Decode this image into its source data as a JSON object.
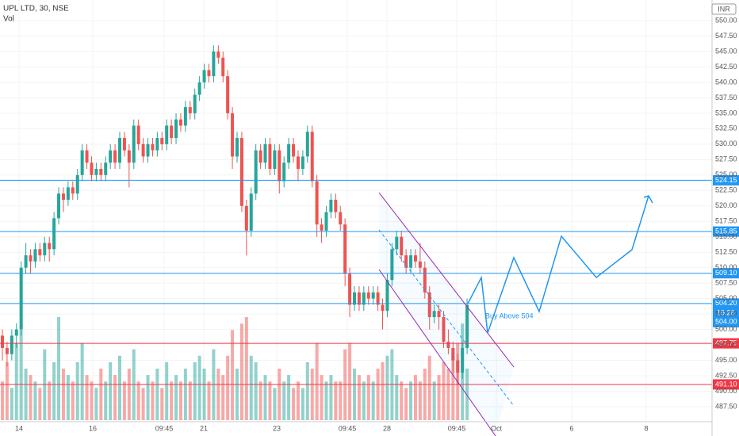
{
  "chart_data": {
    "type": "candlestick",
    "title": "UPL LTD, 30, NSE",
    "volume_label": "Vol",
    "currency": "INR",
    "up_color": "#26a69a",
    "down_color": "#ef5350",
    "ylim": [
      487.5,
      550
    ],
    "yticks": [
      {
        "value": 487.5,
        "label": "487.50"
      },
      {
        "value": 490,
        "label": "490.00"
      },
      {
        "value": 492.5,
        "label": "492.50"
      },
      {
        "value": 495,
        "label": "495.00"
      },
      {
        "value": 497.5,
        "label": "497.50"
      },
      {
        "value": 500,
        "label": "500.00"
      },
      {
        "value": 502.5,
        "label": "502.50"
      },
      {
        "value": 505,
        "label": "505.00"
      },
      {
        "value": 507.5,
        "label": "507.50"
      },
      {
        "value": 510,
        "label": "510.00"
      },
      {
        "value": 512.5,
        "label": "512.50"
      },
      {
        "value": 515,
        "label": "515.00"
      },
      {
        "value": 517.5,
        "label": "517.50"
      },
      {
        "value": 520,
        "label": "520.00"
      },
      {
        "value": 522.5,
        "label": "522.50"
      },
      {
        "value": 525,
        "label": "525.00"
      },
      {
        "value": 527.5,
        "label": "527.50"
      },
      {
        "value": 530,
        "label": "530.00"
      },
      {
        "value": 532.5,
        "label": "532.50"
      },
      {
        "value": 535,
        "label": "535.00"
      },
      {
        "value": 537.5,
        "label": "537.50"
      },
      {
        "value": 540,
        "label": "540.00"
      },
      {
        "value": 542.5,
        "label": "542.50"
      },
      {
        "value": 545,
        "label": "545.00"
      },
      {
        "value": 547.5,
        "label": "547.50"
      },
      {
        "value": 550,
        "label": "550.00"
      }
    ],
    "xtick_labels": [
      "14",
      "16",
      "09:45",
      "21",
      "23",
      "09:45",
      "28",
      "09:45",
      "Oct",
      "6",
      "8"
    ],
    "ohlc": [
      [
        499,
        500,
        495,
        497
      ],
      [
        497,
        498,
        494,
        496
      ],
      [
        496,
        500,
        495,
        499
      ],
      [
        499,
        501,
        497,
        500
      ],
      [
        500,
        511,
        499,
        510
      ],
      [
        510,
        514,
        509,
        512
      ],
      [
        512,
        513,
        509,
        511
      ],
      [
        511,
        514,
        510,
        513
      ],
      [
        513,
        514,
        511,
        512
      ],
      [
        512,
        515,
        511,
        514
      ],
      [
        514,
        515,
        511,
        513
      ],
      [
        513,
        519,
        512,
        518
      ],
      [
        518,
        523,
        517,
        522
      ],
      [
        522,
        523,
        519,
        521
      ],
      [
        521,
        524,
        520,
        523
      ],
      [
        523,
        524,
        521,
        522
      ],
      [
        522,
        526,
        521,
        525
      ],
      [
        525,
        530,
        524,
        529
      ],
      [
        529,
        530,
        526,
        527
      ],
      [
        527,
        528,
        524,
        525
      ],
      [
        525,
        527,
        524,
        526
      ],
      [
        526,
        527,
        524,
        525
      ],
      [
        525,
        528,
        524,
        527
      ],
      [
        527,
        530,
        526,
        529
      ],
      [
        529,
        530,
        526,
        527
      ],
      [
        527,
        532,
        526,
        531
      ],
      [
        531,
        532,
        528,
        529
      ],
      [
        529,
        530,
        523,
        527
      ],
      [
        527,
        534,
        526,
        533
      ],
      [
        533,
        534,
        529,
        530
      ],
      [
        530,
        531,
        527,
        528
      ],
      [
        528,
        531,
        527,
        530
      ],
      [
        530,
        531,
        528,
        529
      ],
      [
        529,
        532,
        528,
        531
      ],
      [
        531,
        532,
        529,
        530
      ],
      [
        530,
        534,
        529,
        533
      ],
      [
        533,
        534,
        530,
        531
      ],
      [
        531,
        535,
        530,
        534
      ],
      [
        534,
        535,
        532,
        533
      ],
      [
        533,
        537,
        532,
        536
      ],
      [
        536,
        537,
        534,
        535
      ],
      [
        535,
        539,
        534,
        538
      ],
      [
        538,
        541,
        537,
        540
      ],
      [
        540,
        543,
        539,
        542
      ],
      [
        542,
        543,
        540,
        541
      ],
      [
        541,
        546,
        540,
        545
      ],
      [
        545,
        546,
        543,
        544
      ],
      [
        544,
        545,
        540,
        541
      ],
      [
        541,
        542,
        534,
        535
      ],
      [
        535,
        536,
        526,
        528
      ],
      [
        528,
        532,
        527,
        531
      ],
      [
        531,
        532,
        519,
        520
      ],
      [
        520,
        521,
        512,
        516
      ],
      [
        516,
        523,
        515,
        522
      ],
      [
        522,
        530,
        521,
        529
      ],
      [
        529,
        530,
        526,
        527
      ],
      [
        527,
        531,
        526,
        530
      ],
      [
        530,
        531,
        525,
        526
      ],
      [
        526,
        530,
        525,
        529
      ],
      [
        529,
        530,
        522,
        524
      ],
      [
        524,
        528,
        523,
        527
      ],
      [
        527,
        531,
        526,
        530
      ],
      [
        530,
        531,
        527,
        528
      ],
      [
        528,
        529,
        524,
        526
      ],
      [
        526,
        529,
        525,
        528
      ],
      [
        528,
        533,
        527,
        532
      ],
      [
        532,
        533,
        523,
        524
      ],
      [
        524,
        525,
        515,
        517
      ],
      [
        517,
        518,
        514,
        516
      ],
      [
        516,
        520,
        515,
        519
      ],
      [
        519,
        522,
        518,
        521
      ],
      [
        521,
        522,
        518,
        519
      ],
      [
        519,
        520,
        516,
        517
      ],
      [
        517,
        518,
        507,
        509
      ],
      [
        509,
        510,
        502,
        504
      ],
      [
        504,
        507,
        503,
        506
      ],
      [
        506,
        507,
        503,
        504
      ],
      [
        504,
        507,
        503,
        506
      ],
      [
        506,
        507,
        504,
        505
      ],
      [
        505,
        507,
        504,
        506
      ],
      [
        506,
        507,
        503,
        504
      ],
      [
        504,
        505,
        500,
        503
      ],
      [
        503,
        509,
        502,
        508
      ],
      [
        508,
        514,
        507,
        513
      ],
      [
        513,
        516,
        512,
        515
      ],
      [
        515,
        516,
        511,
        512
      ],
      [
        512,
        513,
        509,
        510
      ],
      [
        510,
        513,
        509,
        512
      ],
      [
        512,
        513,
        510,
        511
      ],
      [
        511,
        514,
        509,
        510
      ],
      [
        510,
        511,
        505,
        506
      ],
      [
        506,
        507,
        500,
        502
      ],
      [
        502,
        504,
        501,
        503
      ],
      [
        503,
        504,
        500,
        502
      ],
      [
        502,
        503,
        497,
        498
      ],
      [
        498,
        500,
        496,
        497
      ],
      [
        497,
        498,
        493,
        495
      ],
      [
        495,
        496,
        491,
        493
      ],
      [
        493,
        498,
        492,
        497
      ],
      [
        497,
        505,
        496,
        504
      ]
    ],
    "volume": [
      30,
      45,
      25,
      60,
      70,
      40,
      35,
      30,
      25,
      55,
      30,
      45,
      80,
      40,
      35,
      30,
      45,
      60,
      35,
      30,
      25,
      40,
      30,
      45,
      35,
      50,
      30,
      40,
      55,
      30,
      25,
      35,
      30,
      40,
      25,
      45,
      30,
      35,
      30,
      40,
      30,
      45,
      50,
      40,
      30,
      55,
      40,
      35,
      50,
      70,
      40,
      75,
      80,
      50,
      45,
      30,
      35,
      30,
      25,
      40,
      30,
      35,
      25,
      30,
      25,
      45,
      40,
      60,
      35,
      30,
      35,
      30,
      30,
      55,
      60,
      40,
      35,
      30,
      35,
      30,
      40,
      45,
      50,
      55,
      35,
      30,
      25,
      30,
      35,
      30,
      40,
      50,
      30,
      35,
      45,
      40,
      50,
      60,
      75,
      40
    ],
    "levels": [
      {
        "value": 524.15,
        "label": "524.15",
        "color": "#2196f3"
      },
      {
        "value": 515.85,
        "label": "515.85",
        "color": "#2196f3"
      },
      {
        "value": 509.1,
        "label": "509.10",
        "color": "#2196f3"
      },
      {
        "value": 504.2,
        "label": "504.20",
        "color": "#2196f3"
      },
      {
        "value": 497.75,
        "label": "497.75",
        "color": "#f23645"
      },
      {
        "value": 491.1,
        "label": "491.10",
        "color": "#f23645"
      }
    ],
    "last_price": {
      "value": 504,
      "label": "504.00",
      "countdown": "19:26",
      "color": "#2196f3"
    },
    "annotation": "Buy Above 504"
  }
}
